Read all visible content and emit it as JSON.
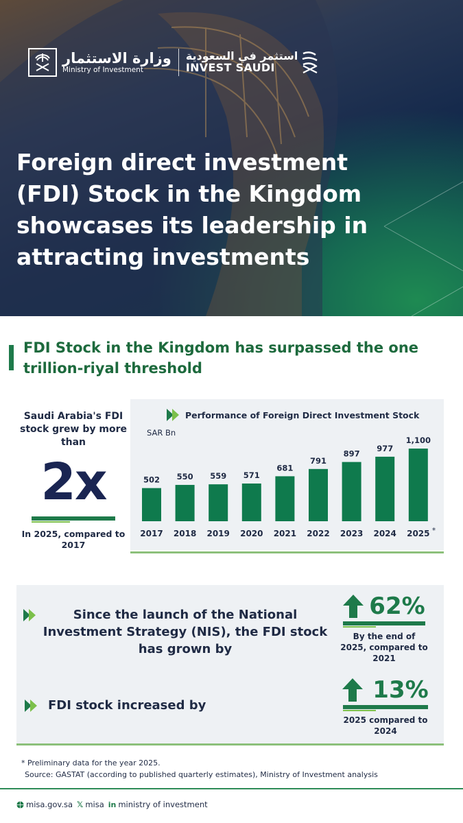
{
  "colors": {
    "accent": "#1e7a4a",
    "accent_light": "#7cc04a",
    "navy": "#1a2552",
    "panel": "#eef1f4"
  },
  "header": {
    "ministry_ar": "وزارة الاستثمار",
    "ministry_en": "Ministry of Investment",
    "invest_ar": "استثمر في السعودية",
    "invest_en": "INVEST SAUDI",
    "title": "Foreign direct investment (FDI) Stock in the Kingdom showcases its leadership in attracting investments"
  },
  "headline": "FDI Stock in the Kingdom has surpassed the one trillion-riyal threshold",
  "stat": {
    "lead": "Saudi Arabia's FDI stock grew by more than",
    "value": "2x",
    "note": "In 2025, compared to 2017"
  },
  "chart_data": {
    "type": "bar",
    "title": "Performance of Foreign Direct Investment Stock",
    "ylabel": "SAR Bn",
    "categories": [
      "2017",
      "2018",
      "2019",
      "2020",
      "2021",
      "2022",
      "2023",
      "2024",
      "2025"
    ],
    "values": [
      502,
      550,
      559,
      571,
      681,
      791,
      897,
      977,
      1100
    ],
    "value_labels": [
      "502",
      "550",
      "559",
      "571",
      "681",
      "791",
      "897",
      "977",
      "1,100"
    ],
    "annotations": [
      {
        "category": "2025",
        "text": "*"
      }
    ],
    "bar_color": "#0f7a4d",
    "grid": false,
    "legend": "none"
  },
  "nis": {
    "text": "Since the launch of the National Investment Strategy (NIS), the FDI stock has grown by",
    "value": "62%",
    "caption": "By the end of 2025, compared to 2021"
  },
  "fdi": {
    "text": "FDI stock increased by",
    "value": "13%",
    "caption": "2025 compared to 2024"
  },
  "footnote": {
    "line1": "* Preliminary data for the year 2025.",
    "line2": "Source: GASTAT (according to published quarterly estimates), Ministry of Investment analysis"
  },
  "footer": {
    "web": "misa.gov.sa",
    "x": "misa",
    "linkedin": "ministry of investment"
  }
}
